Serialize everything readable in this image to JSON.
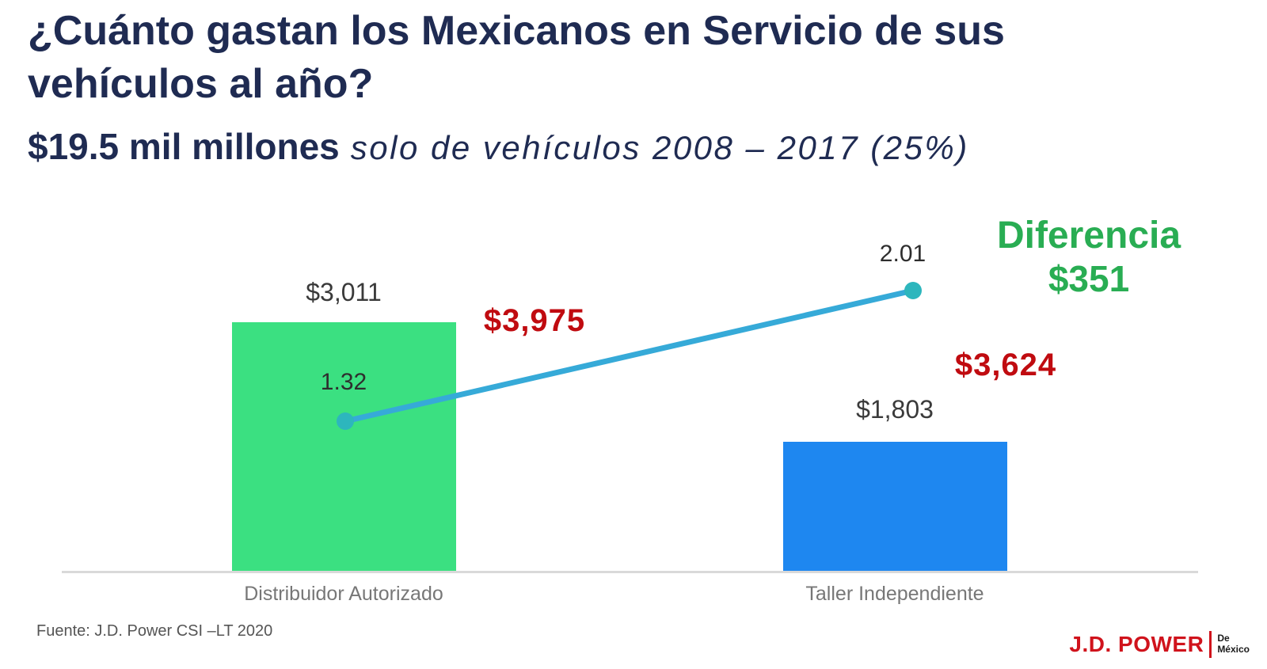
{
  "header": {
    "title_line1": "¿Cuánto gastan los Mexicanos en Servicio de sus",
    "title_line2": "vehículos al año?",
    "amount": "$19.5 mil millones",
    "scope": "solo de vehículos 2008 – 2017  (25%)"
  },
  "chart_data": {
    "type": "bar",
    "categories": [
      "Distribuidor Autorizado",
      "Taller Independiente"
    ],
    "series": [
      {
        "name": "costo-promedio-por-servicio",
        "type": "bar",
        "values": [
          3011,
          1803
        ],
        "labels": [
          "$3,011",
          "$1,803"
        ],
        "colors": [
          "#3BE081",
          "#1E87F0"
        ]
      },
      {
        "name": "servicios-por-anio",
        "type": "line",
        "values": [
          1.32,
          2.01
        ],
        "labels": [
          "1.32",
          "2.01"
        ],
        "line_color": "#36AAD8",
        "marker_color": "#2DB6BD"
      },
      {
        "name": "gasto-anual",
        "type": "data-label",
        "values": [
          3975,
          3624
        ],
        "labels": [
          "$3,975",
          "$3,624"
        ],
        "color": "#C00B10"
      }
    ],
    "annotation": {
      "label": "Diferencia",
      "value": "$351",
      "color": "#29AD53"
    },
    "grid": false,
    "legend": "none",
    "axis_line_color": "#D9D9D9",
    "title_color": "#1F2B52"
  },
  "footer": {
    "source": "Fuente: J.D. Power CSI –LT 2020",
    "logo_main": "J.D. POWER",
    "logo_region_line1": "De",
    "logo_region_line2": "México"
  }
}
